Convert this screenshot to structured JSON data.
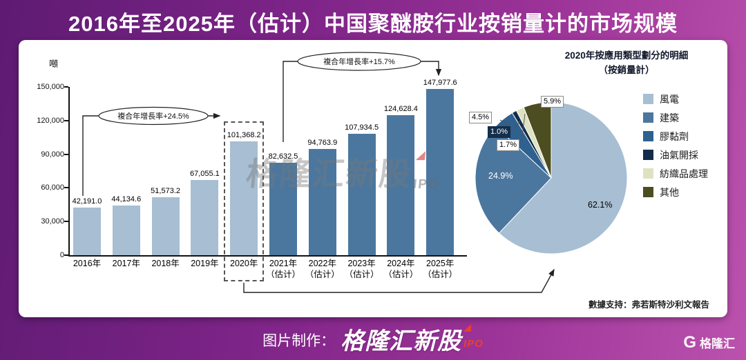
{
  "header": {
    "title": "2016年至2025年（估计）中国聚醚胺行业按销量计的市场规模"
  },
  "chart_data": [
    {
      "type": "bar",
      "title": "中国聚醚胺行业按销量计的市场规模",
      "ylabel": "噸",
      "unit": "噸",
      "ylim": [
        0,
        150000
      ],
      "yticks": [
        "0",
        "30,000",
        "60,000",
        "90,000",
        "120,000",
        "150,000"
      ],
      "categories": [
        "2016年",
        "2017年",
        "2018年",
        "2019年",
        "2020年",
        "2021年",
        "2022年",
        "2023年",
        "2024年",
        "2025年"
      ],
      "sublabels": [
        "",
        "",
        "",
        "",
        "",
        "（估计）",
        "（估计）",
        "（估计）",
        "（估计）",
        "（估计）"
      ],
      "values": [
        42191.0,
        44134.6,
        51573.2,
        67055.1,
        101368.2,
        82632.5,
        94763.9,
        107934.5,
        124628.4,
        147977.6
      ],
      "value_labels": [
        "42,191.0",
        "44,134.6",
        "51,573.2",
        "67,055.1",
        "101,368.2",
        "82,632.5",
        "94,763.9",
        "107,934.5",
        "124,628.4",
        "147,977.6"
      ],
      "colors": {
        "actual": "#a7bed3",
        "forecast": "#4b779f"
      },
      "forecast_from": 5,
      "highlight_category": "2020年",
      "annotations": {
        "cagr_2016_2020": "複合年增長率+24.5%",
        "cagr_2020_2025": "複合年增長率+15.7%"
      }
    },
    {
      "type": "pie",
      "title": "2020年按應用類型劃分的明細",
      "subtitle": "（按銷量計）",
      "legend_position": "right",
      "labels": [
        "風電",
        "建築",
        "膠黏劑",
        "油氣開採",
        "紡織品處理",
        "其他"
      ],
      "values": [
        62.1,
        24.9,
        4.5,
        1.0,
        1.7,
        5.9
      ],
      "pct_labels": [
        "62.1%",
        "24.9%",
        "4.5%",
        "1.0%",
        "1.7%",
        "5.9%"
      ],
      "colors": [
        "#a7bed3",
        "#4b779f",
        "#2e6090",
        "#132c49",
        "#dfe2c0",
        "#4c4d20"
      ]
    }
  ],
  "source": "數據支持：弗若斯特沙利文報告",
  "watermark": {
    "text": "格隆汇新股",
    "bolt": "◢",
    "suffix": "IPO"
  },
  "footer": {
    "prefix": "图片制作：",
    "brand": "格隆汇新股",
    "bolt": "◢",
    "brand_suffix": "IPO",
    "logo_mark": "G",
    "logo": "格隆汇"
  }
}
